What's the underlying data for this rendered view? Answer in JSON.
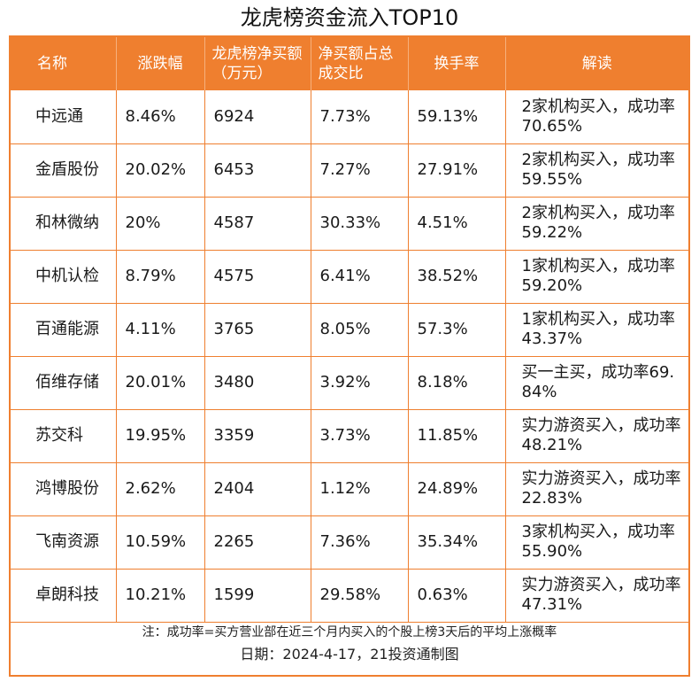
{
  "title": "龙虎榜资金流入TOP10",
  "headers": [
    "名称",
    "涨跌幅",
    "龙虎榜净买额（万元）",
    "净买额占总成交比",
    "换手率",
    "解读"
  ],
  "rows": [
    {
      "name": "中远通",
      "change": "8.46%",
      "net_buy": "6924",
      "ratio": "7.73%",
      "turnover": "59.13%",
      "note": "2家机构买入，成功率70.65%"
    },
    {
      "name": "金盾股份",
      "change": "20.02%",
      "net_buy": "6453",
      "ratio": "7.27%",
      "turnover": "27.91%",
      "note": "2家机构买入，成功率59.55%"
    },
    {
      "name": "和林微纳",
      "change": "20%",
      "net_buy": "4587",
      "ratio": "30.33%",
      "turnover": "4.51%",
      "note": "2家机构买入，成功率59.22%"
    },
    {
      "name": "中机认检",
      "change": "8.79%",
      "net_buy": "4575",
      "ratio": "6.41%",
      "turnover": "38.52%",
      "note": "1家机构买入，成功率59.20%"
    },
    {
      "name": "百通能源",
      "change": "4.11%",
      "net_buy": "3765",
      "ratio": "8.05%",
      "turnover": "57.3%",
      "note": "1家机构买入，成功率43.37%"
    },
    {
      "name": "佰维存储",
      "change": "20.01%",
      "net_buy": "3480",
      "ratio": "3.92%",
      "turnover": "8.18%",
      "note": "买一主买，成功率69.84%"
    },
    {
      "name": "苏交科",
      "change": "19.95%",
      "net_buy": "3359",
      "ratio": "3.73%",
      "turnover": "11.85%",
      "note": "实力游资买入，成功率48.21%"
    },
    {
      "name": "鸿博股份",
      "change": "2.62%",
      "net_buy": "2404",
      "ratio": "1.12%",
      "turnover": "24.89%",
      "note": "实力游资买入，成功率22.83%"
    },
    {
      "name": "飞南资源",
      "change": "10.59%",
      "net_buy": "2265",
      "ratio": "7.36%",
      "turnover": "35.34%",
      "note": "3家机构买入，成功率55.90%"
    },
    {
      "name": "卓朗科技",
      "change": "10.21%",
      "net_buy": "1599",
      "ratio": "29.58%",
      "turnover": "0.63%",
      "note": "实力游资买入，成功率47.31%"
    }
  ],
  "footnote": "注：成功率=买方营业部在近三个月内买入的个股上榜3天后的平均上涨概率",
  "date_line": "日期：2024-4-17，21投资通制图",
  "colors": {
    "accent": "#ef7f2f",
    "header_text": "#ffffff"
  }
}
